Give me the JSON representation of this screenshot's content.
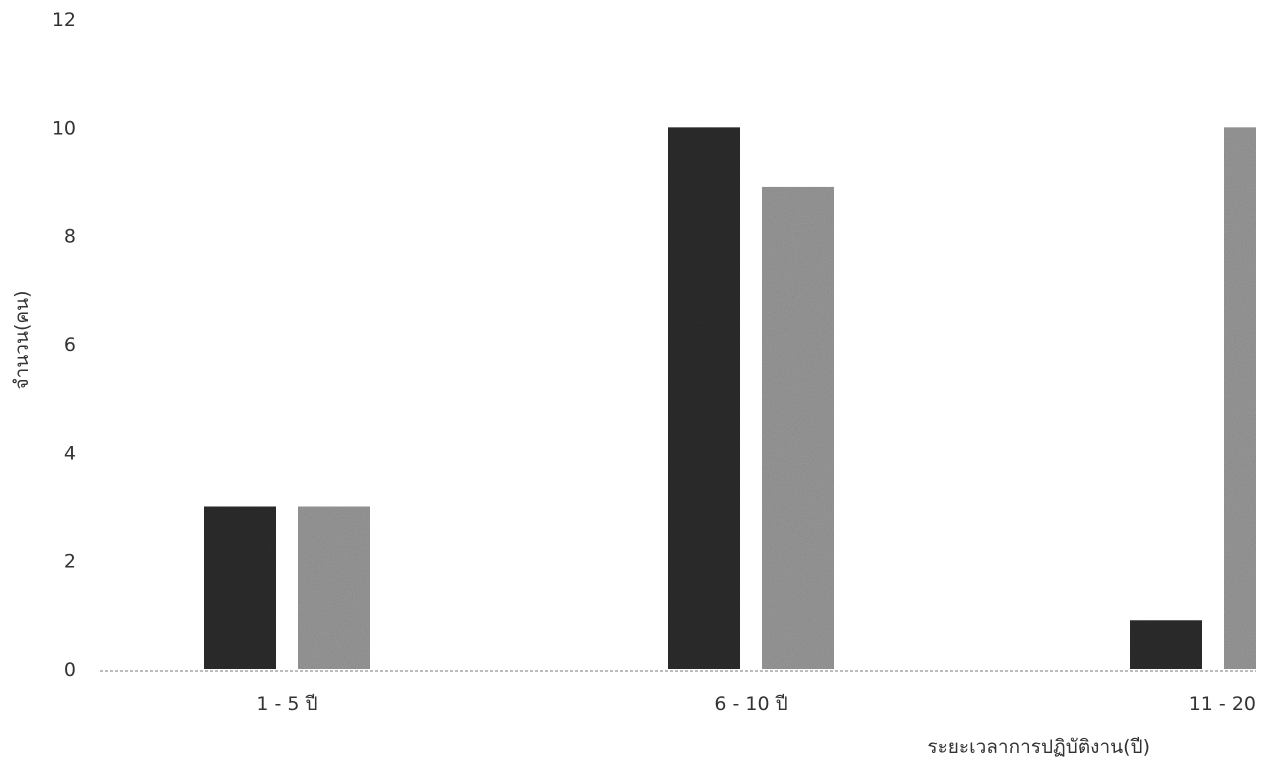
{
  "chart_data": {
    "type": "bar",
    "categories": [
      "1 - 5 ปี",
      "6 - 10 ปี",
      "11 - 20"
    ],
    "series": [
      {
        "values": [
          3,
          10,
          0.9
        ],
        "color": "#2b2b2b"
      },
      {
        "values": [
          3,
          8.9,
          10
        ],
        "color": "#9a9a9a"
      }
    ],
    "xlabel": "ระยะเวลาการปฏิบัติงาน(ปี)",
    "ylabel": "จำนวน(คน)",
    "ylim": [
      0,
      12
    ],
    "yticks": [
      "0",
      "2",
      "4",
      "6",
      "8",
      "10",
      "12"
    ],
    "grid": false,
    "legend": "none"
  }
}
